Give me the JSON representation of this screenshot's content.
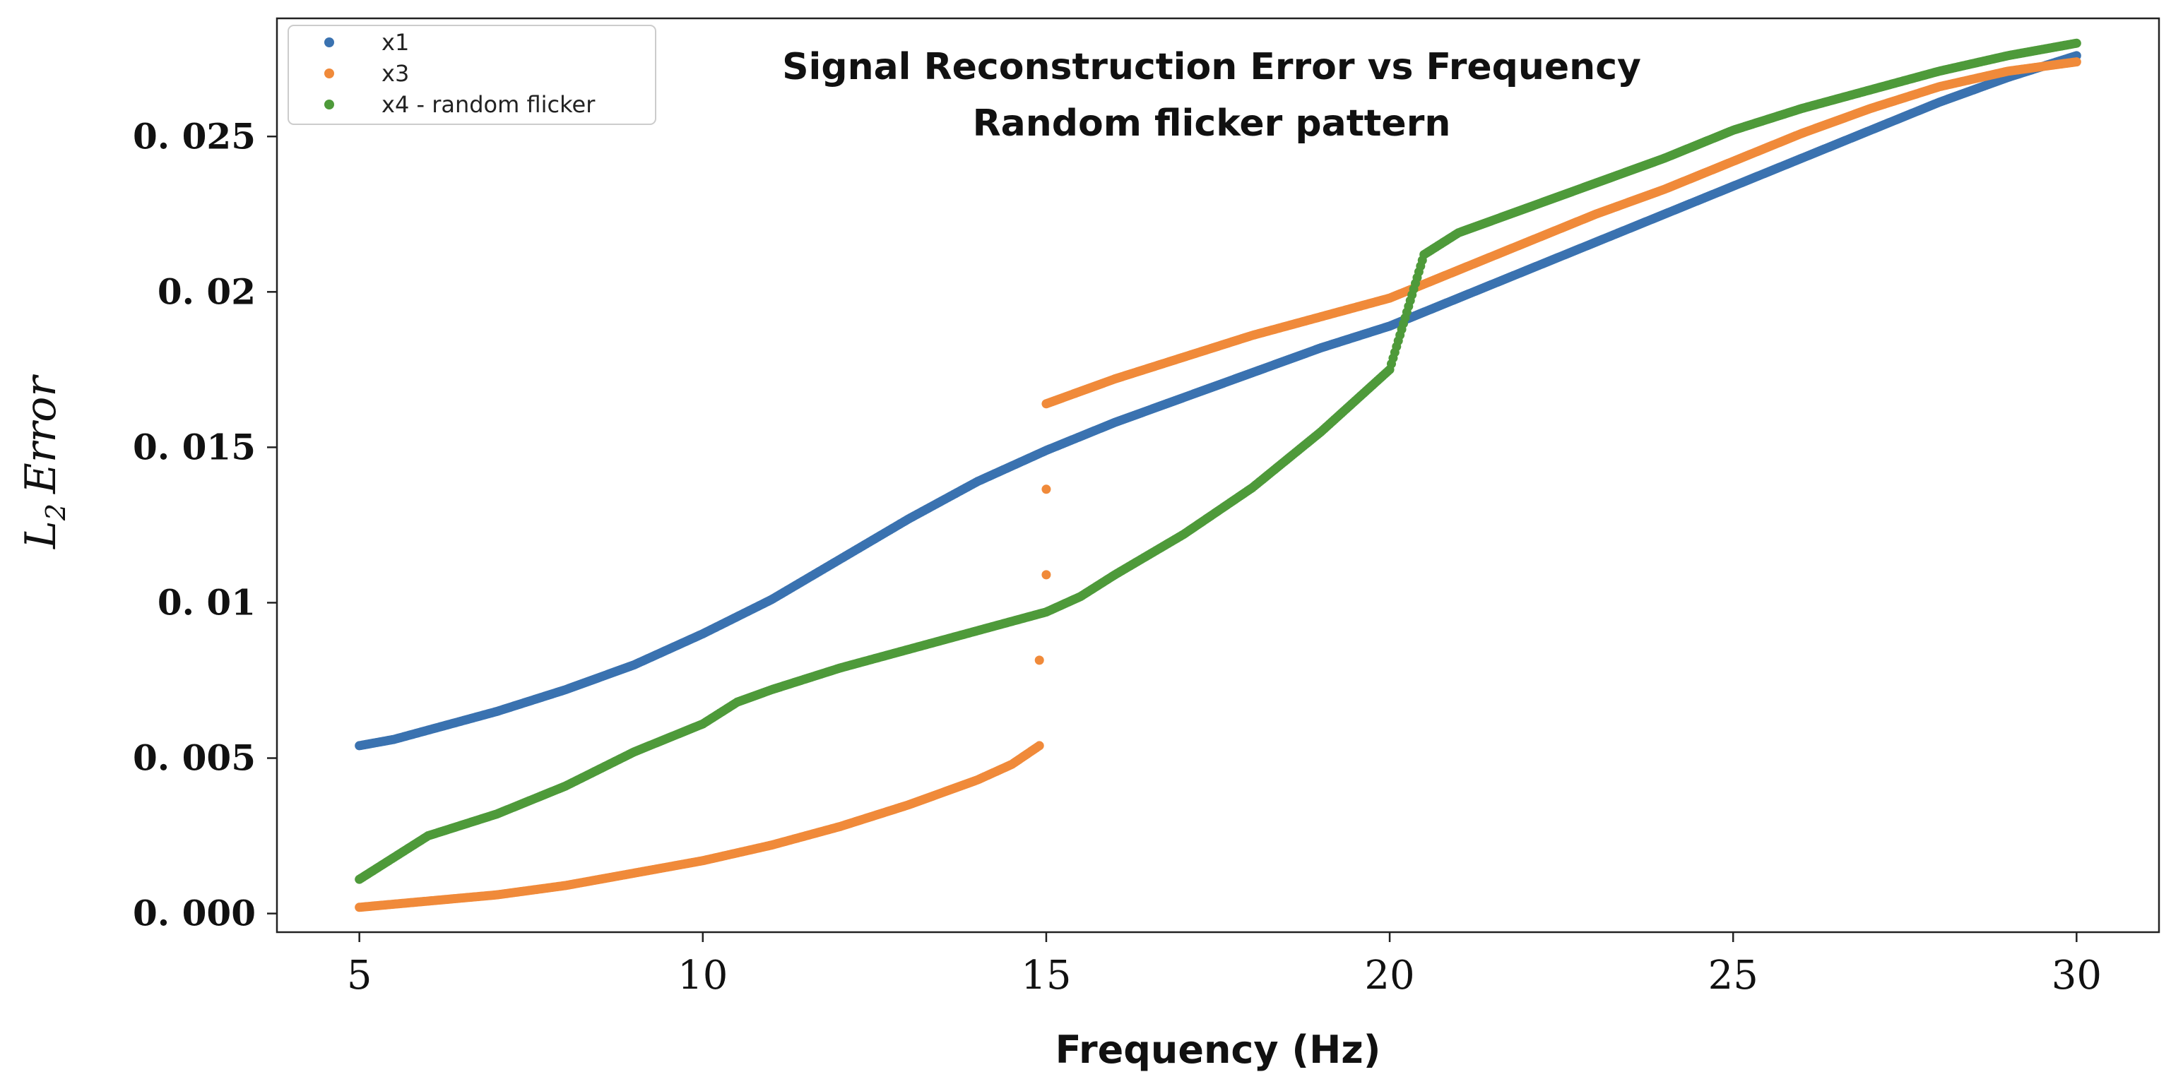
{
  "chart_data": {
    "type": "scatter",
    "title": "Signal Reconstruction Error vs Frequency",
    "subtitle": "Random flicker pattern",
    "xlabel": "Frequency (Hz)",
    "ylabel_main": "L",
    "ylabel_sub": "2",
    "ylabel_rest": "Error",
    "xlim": [
      3.8,
      31.2
    ],
    "ylim": [
      -0.0006,
      0.0288
    ],
    "x_ticks": [
      5,
      10,
      15,
      20,
      25,
      30
    ],
    "x_tick_labels": [
      "5",
      "10",
      "15",
      "20",
      "25",
      "30"
    ],
    "y_ticks": [
      0,
      0.005,
      0.01,
      0.015,
      0.02,
      0.025
    ],
    "y_tick_labels": [
      "0. 000",
      "0. 005",
      "0. 01",
      "0. 015",
      "0. 02",
      "0. 025"
    ],
    "legend_position": "top-left",
    "grid": false,
    "series": [
      {
        "name": "x1",
        "color": "#3a72b0",
        "x": [
          5,
          5.5,
          6,
          7,
          8,
          9,
          10,
          11,
          12,
          13,
          14,
          15,
          16,
          17,
          18,
          19,
          20,
          21,
          22,
          23,
          24,
          25,
          26,
          27,
          28,
          29,
          30
        ],
        "y": [
          0.0054,
          0.0056,
          0.0059,
          0.0065,
          0.0072,
          0.008,
          0.009,
          0.0101,
          0.0114,
          0.0127,
          0.0139,
          0.0149,
          0.0158,
          0.0166,
          0.0174,
          0.0182,
          0.0189,
          0.0198,
          0.0207,
          0.0216,
          0.0225,
          0.0234,
          0.0243,
          0.0252,
          0.0261,
          0.0269,
          0.0276
        ]
      },
      {
        "name": "x3",
        "color": "#f08a3a",
        "x": [
          5,
          6,
          7,
          8,
          9,
          10,
          11,
          12,
          13,
          14,
          14.5,
          14.9,
          15,
          15.5,
          16,
          17,
          18,
          19,
          20,
          21,
          22,
          23,
          24,
          25,
          26,
          27,
          28,
          29,
          30
        ],
        "y": [
          0.0002,
          0.0004,
          0.0006,
          0.0009,
          0.0013,
          0.0017,
          0.0022,
          0.0028,
          0.0035,
          0.0043,
          0.0048,
          0.0054,
          0.0164,
          0.0168,
          0.0172,
          0.0179,
          0.0186,
          0.0192,
          0.0198,
          0.0207,
          0.0216,
          0.0225,
          0.0233,
          0.0242,
          0.0251,
          0.0259,
          0.0266,
          0.0271,
          0.0274
        ]
      },
      {
        "name": "x4 - random flicker",
        "color": "#4e9a3a",
        "x": [
          5,
          5.5,
          6,
          7,
          8,
          9,
          10,
          10.5,
          11,
          12,
          13,
          14,
          15,
          15.5,
          16,
          17,
          18,
          18.5,
          19,
          19.5,
          20,
          20.5,
          21,
          22,
          23,
          24,
          25,
          26,
          27,
          28,
          29,
          30
        ],
        "y": [
          0.0011,
          0.0018,
          0.0025,
          0.0032,
          0.0041,
          0.0052,
          0.0061,
          0.0068,
          0.0072,
          0.0079,
          0.0085,
          0.0091,
          0.0097,
          0.0102,
          0.0109,
          0.0122,
          0.0137,
          0.0146,
          0.0155,
          0.0165,
          0.0175,
          0.0212,
          0.0219,
          0.0227,
          0.0235,
          0.0243,
          0.0252,
          0.0259,
          0.0265,
          0.0271,
          0.0276,
          0.028
        ]
      }
    ]
  }
}
